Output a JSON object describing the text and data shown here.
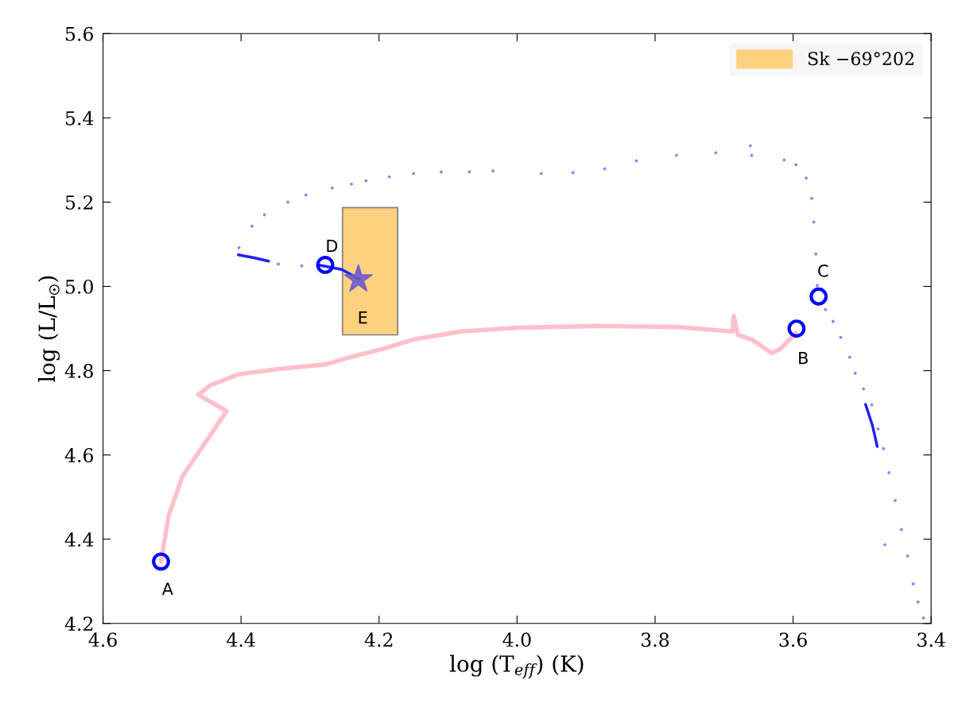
{
  "chart_data": {
    "type": "line",
    "xlabel": "log (T$_{eff}$) (K)",
    "ylabel": "log (L/L$_{☉}$)",
    "xlim": [
      4.6,
      3.4
    ],
    "ylim": [
      4.2,
      5.6
    ],
    "xticks": [
      4.6,
      4.4,
      4.2,
      {
        "value": 4,
        "label": "4.0"
      },
      3.8,
      3.6,
      3.4
    ],
    "yticks": [
      4.2,
      4.4,
      4.6,
      4.8,
      {
        "value": 5,
        "label": "5.0"
      },
      5.2,
      5.4,
      5.6
    ],
    "legend": "top right",
    "series": [
      {
        "type": "bar",
        "name": "Sk −69°202",
        "color": "#fdd17f",
        "x": [
          4.213
        ],
        "base": [
          4.885
        ],
        "values": [
          0.302
        ]
      },
      {
        "marker": "none",
        "color": "#ffc0cb",
        "x": [
          4.516,
          4.505,
          4.485,
          4.45,
          4.421,
          4.462,
          4.444,
          4.404,
          4.346,
          4.277,
          4.242,
          4.196,
          4.15,
          4.081,
          4.0,
          3.885,
          3.769,
          3.688,
          3.686,
          3.68,
          3.66,
          3.631,
          3.619,
          3.596
        ],
        "values": [
          4.347,
          4.455,
          4.549,
          4.634,
          4.704,
          4.743,
          4.766,
          4.791,
          4.804,
          4.815,
          4.832,
          4.851,
          4.874,
          4.893,
          4.902,
          4.906,
          4.904,
          4.893,
          4.93,
          4.885,
          4.874,
          4.842,
          4.851,
          4.889
        ]
      },
      {
        "type": "scatter",
        "marker": "circle",
        "color": "#7b7bff",
        "x": [
          3.411,
          3.419,
          3.426,
          3.434,
          3.443,
          3.452,
          3.461,
          3.469,
          3.477,
          3.486,
          3.498,
          3.51,
          3.518,
          3.531,
          3.542,
          3.553,
          3.467,
          3.565,
          3.567,
          3.57,
          3.573,
          3.581,
          3.596,
          3.613,
          3.66,
          3.662,
          3.712,
          3.769,
          3.827,
          3.873,
          3.919,
          3.965,
          4.035,
          4.069,
          4.11,
          4.15,
          4.185,
          4.219,
          4.24,
          4.268,
          4.306,
          4.332,
          4.366,
          4.384,
          4.403,
          4.346,
          4.312
        ],
        "values": [
          4.213,
          4.251,
          4.294,
          4.36,
          4.423,
          4.492,
          4.558,
          4.615,
          4.662,
          4.719,
          4.757,
          4.794,
          4.832,
          4.879,
          4.917,
          4.945,
          4.387,
          5.002,
          5.077,
          5.153,
          5.209,
          5.257,
          5.289,
          5.3,
          5.311,
          5.334,
          5.317,
          5.311,
          5.298,
          5.279,
          5.27,
          5.268,
          5.274,
          5.272,
          5.272,
          5.268,
          5.26,
          5.251,
          5.243,
          5.234,
          5.217,
          5.2,
          5.17,
          5.143,
          5.092,
          5.053,
          5.049
        ]
      },
      {
        "type": "line",
        "marker": "none",
        "color": "#2020ff",
        "x": [
          4.404,
          4.381,
          4.36
        ],
        "values": [
          5.075,
          5.068,
          5.06
        ]
      },
      {
        "type": "line",
        "marker": "none",
        "color": "#2020ff",
        "x": [
          3.495,
          3.485,
          3.478
        ],
        "values": [
          4.72,
          4.67,
          4.62
        ]
      },
      {
        "type": "line",
        "marker": "none",
        "color": "#2020ff",
        "x": [
          4.288,
          4.254,
          4.228
        ],
        "values": [
          5.051,
          5.04,
          5.017
        ]
      },
      {
        "type": "scatter",
        "marker": "circle",
        "color": "#0000ff",
        "x": [
          4.516,
          3.595,
          3.563,
          4.278
        ],
        "values": [
          4.347,
          4.9,
          4.976,
          5.051
        ]
      },
      {
        "type": "scatter",
        "marker": "star",
        "color": "#6a5acd",
        "x": [
          4.23
        ],
        "values": [
          5.017
        ]
      }
    ],
    "annotations": [
      {
        "text": "A",
        "x": 4.516,
        "y": 4.347
      },
      {
        "text": "B",
        "x": 3.595,
        "y": 4.9
      },
      {
        "text": "C",
        "x": 3.563,
        "y": 4.976
      },
      {
        "text": "D",
        "x": 4.278,
        "y": 5.051
      },
      {
        "text": "E",
        "x": 4.23,
        "y": 5.017
      }
    ]
  }
}
